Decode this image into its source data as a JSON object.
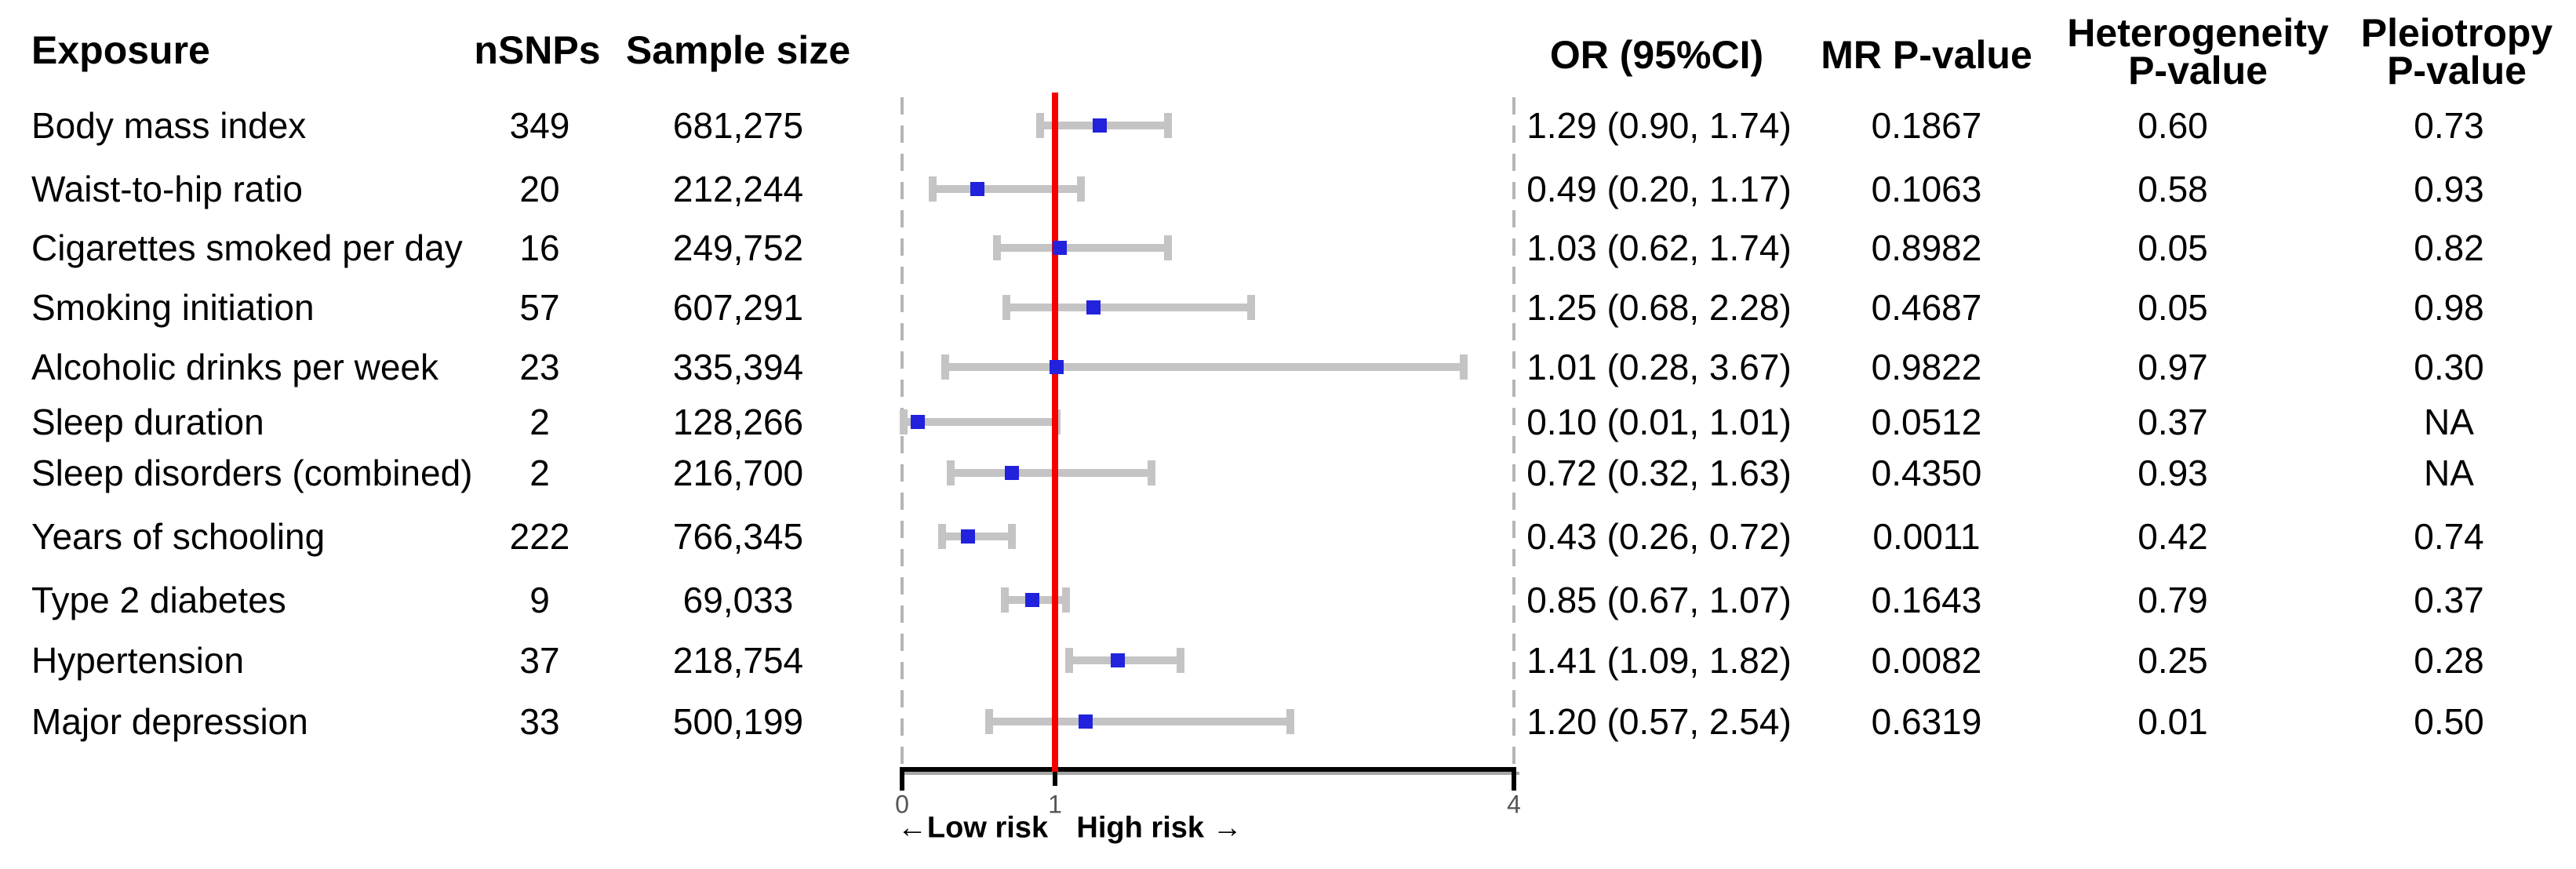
{
  "chart_data": {
    "type": "forest",
    "title": "",
    "columns": {
      "exposure": "Exposure",
      "nsnps": "nSNPs",
      "sample_size": "Sample size",
      "or_ci": "OR (95%CI)",
      "mr_p": "MR P-value",
      "het_p": [
        "Heterogeneity",
        "P-value"
      ],
      "plei_p": [
        "Pleiotropy",
        "P-value"
      ]
    },
    "axis": {
      "min": 0,
      "max": 4,
      "ticks": [
        "0",
        "1",
        "4"
      ],
      "tick_values": [
        0,
        1,
        4
      ],
      "ref_line": 1,
      "low_label": "←Low risk",
      "high_label": "High risk →"
    },
    "rows": [
      {
        "exposure": "Body mass index",
        "nsnps": "349",
        "sample_size": "681,275",
        "or_ci": "1.29 (0.90, 1.74)",
        "or": 1.29,
        "ci_low": 0.9,
        "ci_high": 1.74,
        "mr_p": "0.1867",
        "het_p": "0.60",
        "plei_p": "0.73"
      },
      {
        "exposure": "Waist-to-hip ratio",
        "nsnps": "20",
        "sample_size": "212,244",
        "or_ci": "0.49 (0.20, 1.17)",
        "or": 0.49,
        "ci_low": 0.2,
        "ci_high": 1.17,
        "mr_p": "0.1063",
        "het_p": "0.58",
        "plei_p": "0.93"
      },
      {
        "exposure": "Cigarettes smoked per day",
        "nsnps": "16",
        "sample_size": "249,752",
        "or_ci": "1.03 (0.62, 1.74)",
        "or": 1.03,
        "ci_low": 0.62,
        "ci_high": 1.74,
        "mr_p": "0.8982",
        "het_p": "0.05",
        "plei_p": "0.82"
      },
      {
        "exposure": "Smoking initiation",
        "nsnps": "57",
        "sample_size": "607,291",
        "or_ci": "1.25 (0.68, 2.28)",
        "or": 1.25,
        "ci_low": 0.68,
        "ci_high": 2.28,
        "mr_p": "0.4687",
        "het_p": "0.05",
        "plei_p": "0.98"
      },
      {
        "exposure": "Alcoholic drinks per week",
        "nsnps": "23",
        "sample_size": "335,394",
        "or_ci": "1.01 (0.28, 3.67)",
        "or": 1.01,
        "ci_low": 0.28,
        "ci_high": 3.67,
        "mr_p": "0.9822",
        "het_p": "0.97",
        "plei_p": "0.30"
      },
      {
        "exposure": "Sleep duration",
        "nsnps": "2",
        "sample_size": "128,266",
        "or_ci": "0.10 (0.01, 1.01)",
        "or": 0.1,
        "ci_low": 0.01,
        "ci_high": 1.01,
        "mr_p": "0.0512",
        "het_p": "0.37",
        "plei_p": "NA"
      },
      {
        "exposure": "Sleep disorders (combined)",
        "nsnps": "2",
        "sample_size": "216,700",
        "or_ci": "0.72 (0.32, 1.63)",
        "or": 0.72,
        "ci_low": 0.32,
        "ci_high": 1.63,
        "mr_p": "0.4350",
        "het_p": "0.93",
        "plei_p": "NA"
      },
      {
        "exposure": "Years of schooling",
        "nsnps": "222",
        "sample_size": "766,345",
        "or_ci": "0.43 (0.26, 0.72)",
        "or": 0.43,
        "ci_low": 0.26,
        "ci_high": 0.72,
        "mr_p": "0.0011",
        "het_p": "0.42",
        "plei_p": "0.74"
      },
      {
        "exposure": "Type 2 diabetes",
        "nsnps": "9",
        "sample_size": "69,033",
        "or_ci": "0.85 (0.67, 1.07)",
        "or": 0.85,
        "ci_low": 0.67,
        "ci_high": 1.07,
        "mr_p": "0.1643",
        "het_p": "0.79",
        "plei_p": "0.37"
      },
      {
        "exposure": "Hypertension",
        "nsnps": "37",
        "sample_size": "218,754",
        "or_ci": "1.41 (1.09, 1.82)",
        "or": 1.41,
        "ci_low": 1.09,
        "ci_high": 1.82,
        "mr_p": "0.0082",
        "het_p": "0.25",
        "plei_p": "0.28"
      },
      {
        "exposure": "Major depression",
        "nsnps": "33",
        "sample_size": "500,199",
        "or_ci": "1.20 (0.57, 2.54)",
        "or": 1.2,
        "ci_low": 0.57,
        "ci_high": 2.54,
        "mr_p": "0.6319",
        "het_p": "0.01",
        "plei_p": "0.50"
      }
    ],
    "colors": {
      "point": "#2222dd",
      "ci_bar": "#c4c4c4",
      "ref_line": "#f40000",
      "dashed_line": "#b5b5b5",
      "axis": "#000000",
      "axis_shadow": "#a6a6a6",
      "tick_text": "#555555",
      "text": "#000000"
    },
    "legend_position": "none",
    "grid": false
  }
}
